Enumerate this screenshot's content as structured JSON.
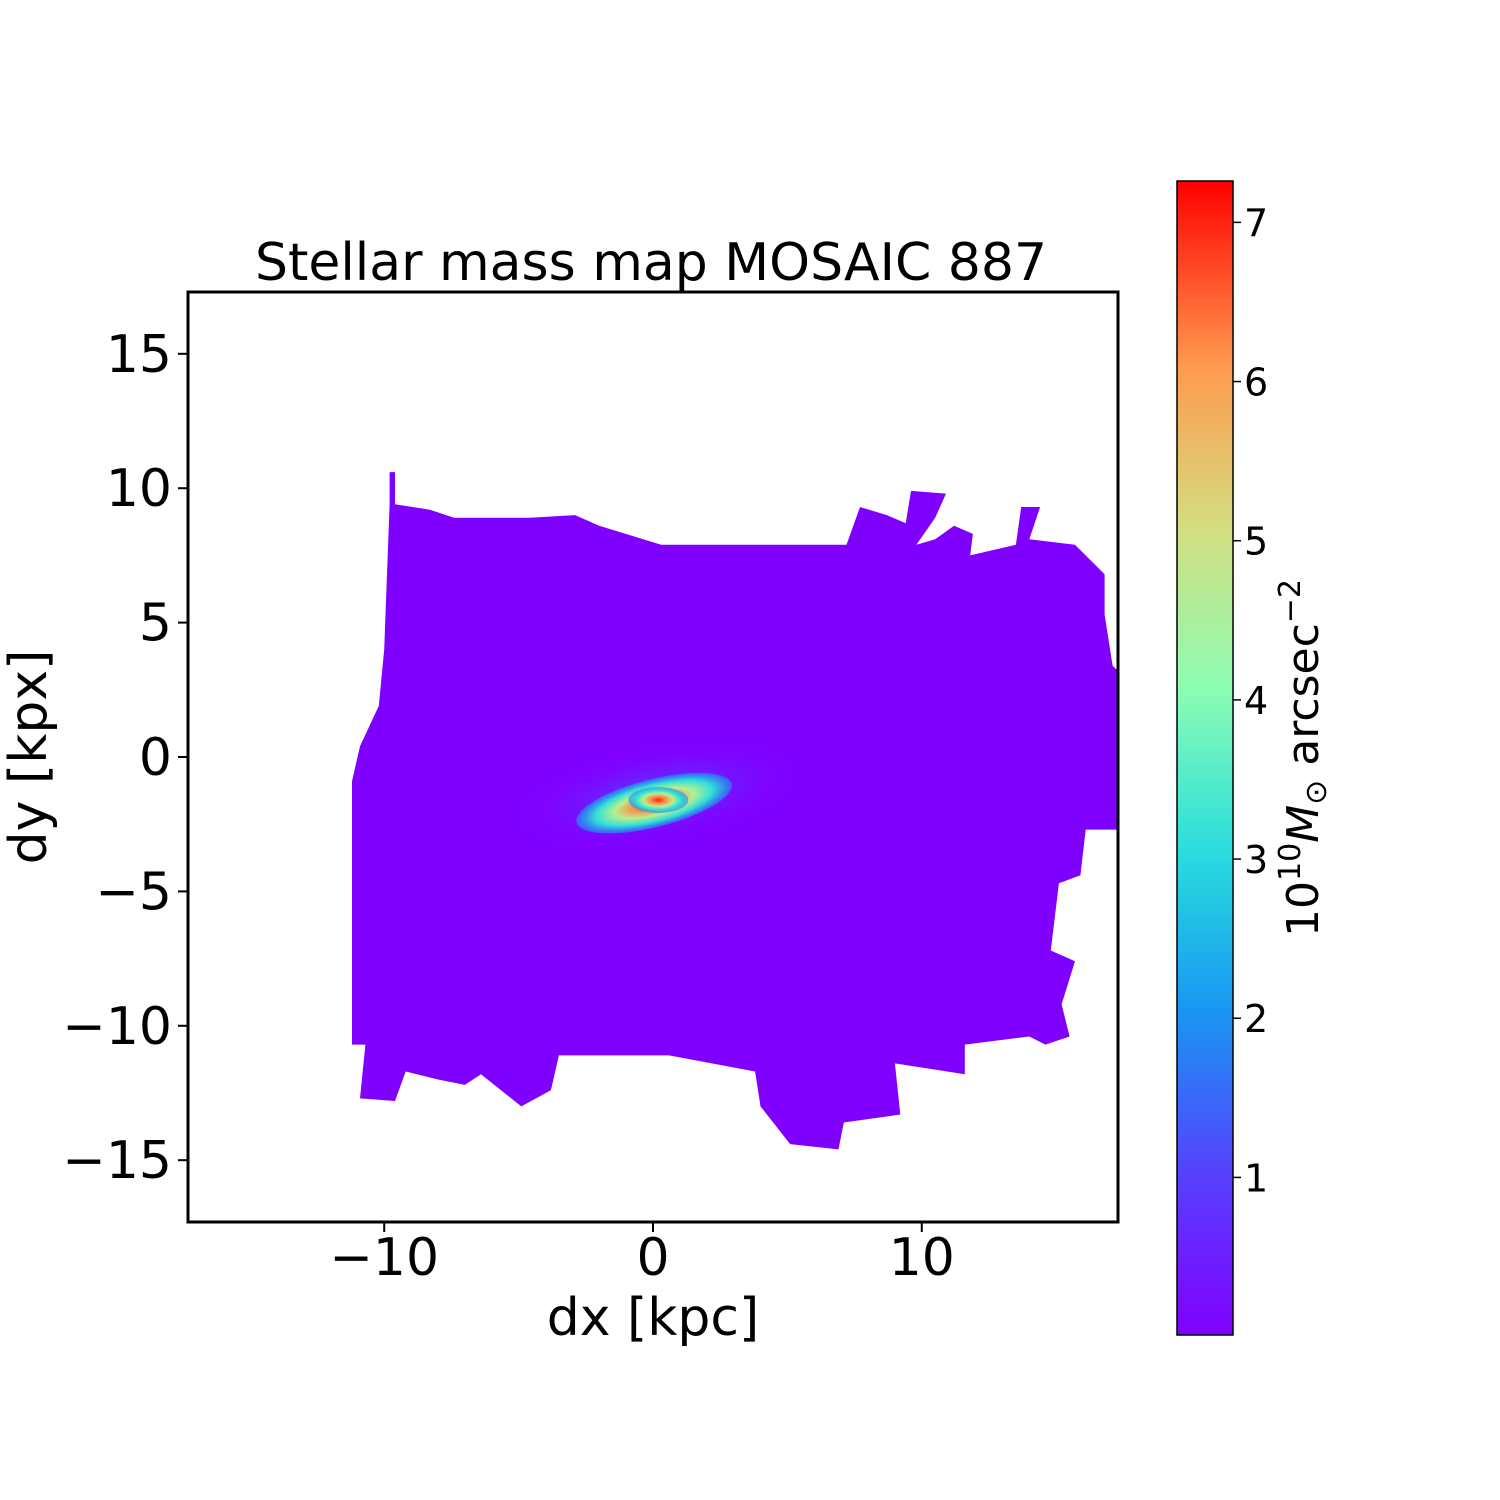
{
  "chart_data": {
    "type": "heatmap",
    "title": "Stellar mass map MOSAIC 887",
    "xlabel": "dx [kpc]",
    "ylabel": "dy [kpx]",
    "xlim": [
      -17.3,
      17.3
    ],
    "ylim": [
      -17.3,
      17.3
    ],
    "xticks": [
      -10,
      0,
      10
    ],
    "xtick_labels": [
      "−10",
      "0",
      "10"
    ],
    "yticks": [
      15,
      10,
      5,
      0,
      -5,
      -10,
      -15
    ],
    "ytick_labels": [
      "15",
      "10",
      "5",
      "0",
      "−5",
      "−10",
      "−15"
    ],
    "colormap": "rainbow",
    "colorbar": {
      "label_base": "10",
      "label_exp": "10",
      "label_unit": "M",
      "label_sub": "⊙",
      "label_tail": " arcsec",
      "label_tail_exp": "−2",
      "range": [
        0.01,
        7.26
      ],
      "ticks": [
        1,
        2,
        3,
        4,
        5,
        6,
        7
      ],
      "tick_labels": [
        "1",
        "2",
        "3",
        "4",
        "5",
        "6",
        "7"
      ]
    },
    "background_value": 0.05,
    "peak": {
      "dx": 0.2,
      "dy": -1.6,
      "value": 7.2
    },
    "mask_outline": [
      [
        -9.8,
        10.6
      ],
      [
        -9.6,
        10.6
      ],
      [
        -9.6,
        9.4
      ],
      [
        -8.3,
        9.2
      ],
      [
        -7.4,
        8.9
      ],
      [
        -4.6,
        8.9
      ],
      [
        -2.9,
        9.0
      ],
      [
        -2.0,
        8.6
      ],
      [
        0.3,
        7.9
      ],
      [
        7.2,
        7.9
      ],
      [
        7.7,
        9.3
      ],
      [
        8.7,
        9.0
      ],
      [
        9.4,
        8.7
      ],
      [
        9.6,
        9.9
      ],
      [
        10.9,
        9.8
      ],
      [
        10.5,
        8.9
      ],
      [
        9.8,
        7.9
      ],
      [
        10.5,
        8.1
      ],
      [
        11.2,
        8.6
      ],
      [
        11.9,
        8.3
      ],
      [
        11.8,
        7.5
      ],
      [
        13.5,
        7.9
      ],
      [
        13.7,
        9.3
      ],
      [
        14.4,
        9.3
      ],
      [
        14.0,
        8.1
      ],
      [
        15.7,
        7.9
      ],
      [
        16.8,
        6.8
      ],
      [
        16.8,
        5.3
      ],
      [
        17.1,
        3.4
      ],
      [
        17.3,
        3.2
      ],
      [
        17.3,
        -2.7
      ],
      [
        16.1,
        -2.7
      ],
      [
        15.9,
        -4.4
      ],
      [
        15.1,
        -4.7
      ],
      [
        14.8,
        -7.2
      ],
      [
        15.7,
        -7.6
      ],
      [
        15.2,
        -9.2
      ],
      [
        15.5,
        -10.4
      ],
      [
        14.6,
        -10.7
      ],
      [
        14.0,
        -10.4
      ],
      [
        11.6,
        -10.7
      ],
      [
        11.6,
        -11.8
      ],
      [
        9.0,
        -11.4
      ],
      [
        9.2,
        -13.3
      ],
      [
        7.1,
        -13.6
      ],
      [
        6.9,
        -14.6
      ],
      [
        5.1,
        -14.4
      ],
      [
        4.0,
        -13.0
      ],
      [
        3.8,
        -11.7
      ],
      [
        0.6,
        -11.1
      ],
      [
        -3.5,
        -11.1
      ],
      [
        -3.8,
        -12.4
      ],
      [
        -4.9,
        -13.0
      ],
      [
        -6.4,
        -11.8
      ],
      [
        -7.0,
        -12.2
      ],
      [
        -8.0,
        -12.0
      ],
      [
        -9.2,
        -11.7
      ],
      [
        -9.6,
        -12.8
      ],
      [
        -10.9,
        -12.7
      ],
      [
        -10.7,
        -10.7
      ],
      [
        -11.2,
        -10.7
      ],
      [
        -11.2,
        -0.9
      ],
      [
        -10.9,
        0.4
      ],
      [
        -10.2,
        1.9
      ],
      [
        -10.0,
        4.0
      ],
      [
        -9.8,
        9.4
      ]
    ]
  }
}
